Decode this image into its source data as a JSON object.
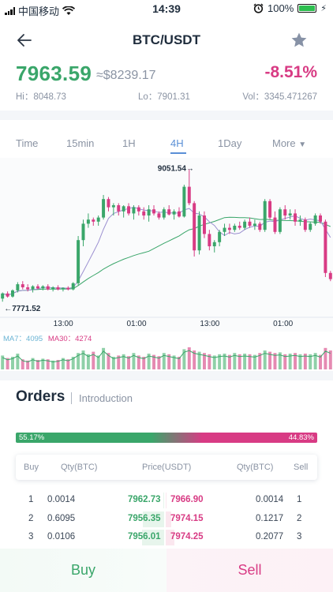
{
  "status_bar": {
    "carrier": "中国移动",
    "time": "14:39",
    "battery": "100%"
  },
  "nav": {
    "title": "BTC/USDT"
  },
  "ticker": {
    "price": "7963.59",
    "usd_price": "≈$8239.17",
    "change": "-8.51%",
    "high": "Hi：8048.73",
    "low": "Lo：7901.31",
    "volume": "Vol：3345.471267"
  },
  "tabs": [
    "Time",
    "15min",
    "1H",
    "4H",
    "1Day",
    "More"
  ],
  "active_tab": "4H",
  "chart_data": {
    "type": "line",
    "title": "",
    "annotations": {
      "max_label": "9051.54",
      "min_label": "7771.52"
    },
    "x_ticks": [
      "13:00",
      "01:00",
      "13:00",
      "01:00"
    ],
    "ma_legend": {
      "ma7": "MA7：4095",
      "ma30": "MA30：4274"
    },
    "colors": {
      "up": "#3aa66a",
      "down": "#d83b84",
      "ma7": "#9b8fd0",
      "ma30": "#3aa66a"
    },
    "candles": [
      [
        7790,
        7850,
        7760,
        7840
      ],
      [
        7840,
        7860,
        7800,
        7810
      ],
      [
        7810,
        7880,
        7800,
        7870
      ],
      [
        7870,
        7950,
        7850,
        7930
      ],
      [
        7930,
        7960,
        7880,
        7900
      ],
      [
        7900,
        7930,
        7860,
        7880
      ],
      [
        7880,
        7920,
        7850,
        7910
      ],
      [
        7910,
        7930,
        7880,
        7890
      ],
      [
        7890,
        7920,
        7870,
        7910
      ],
      [
        7910,
        7930,
        7870,
        7880
      ],
      [
        7880,
        7910,
        7860,
        7900
      ],
      [
        7900,
        7920,
        7870,
        7880
      ],
      [
        7880,
        7900,
        7860,
        7895
      ],
      [
        7895,
        7910,
        7870,
        7880
      ],
      [
        7880,
        7950,
        7870,
        7940
      ],
      [
        7940,
        8400,
        7920,
        8360
      ],
      [
        8360,
        8560,
        8300,
        8520
      ],
      [
        8520,
        8620,
        8480,
        8560
      ],
      [
        8560,
        8580,
        8500,
        8540
      ],
      [
        8540,
        8600,
        8500,
        8580
      ],
      [
        8580,
        8800,
        8560,
        8760
      ],
      [
        8760,
        8780,
        8640,
        8680
      ],
      [
        8680,
        8720,
        8600,
        8700
      ],
      [
        8700,
        8720,
        8600,
        8640
      ],
      [
        8640,
        8700,
        8580,
        8690
      ],
      [
        8690,
        8720,
        8600,
        8620
      ],
      [
        8620,
        8700,
        8560,
        8680
      ],
      [
        8680,
        8700,
        8600,
        8640
      ],
      [
        8640,
        8680,
        8560,
        8600
      ],
      [
        8600,
        8700,
        8540,
        8660
      ],
      [
        8660,
        8700,
        8600,
        8620
      ],
      [
        8620,
        8640,
        8560,
        8580
      ],
      [
        8580,
        8680,
        8560,
        8660
      ],
      [
        8660,
        8700,
        8600,
        8610
      ],
      [
        8610,
        8660,
        8560,
        8640
      ],
      [
        8640,
        8680,
        8580,
        8590
      ],
      [
        8590,
        8900,
        8580,
        8880
      ],
      [
        8880,
        9051,
        8700,
        8720
      ],
      [
        8720,
        8740,
        8200,
        8260
      ],
      [
        8260,
        8640,
        8220,
        8600
      ],
      [
        8600,
        8640,
        8380,
        8420
      ],
      [
        8420,
        8460,
        8260,
        8300
      ],
      [
        8300,
        8360,
        8240,
        8340
      ],
      [
        8340,
        8460,
        8300,
        8440
      ],
      [
        8440,
        8520,
        8400,
        8480
      ],
      [
        8480,
        8520,
        8420,
        8460
      ],
      [
        8460,
        8520,
        8440,
        8500
      ],
      [
        8500,
        8540,
        8460,
        8480
      ],
      [
        8480,
        8560,
        8460,
        8540
      ],
      [
        8540,
        8580,
        8480,
        8500
      ],
      [
        8500,
        8560,
        8460,
        8520
      ],
      [
        8520,
        8540,
        8440,
        8460
      ],
      [
        8460,
        8760,
        8440,
        8740
      ],
      [
        8740,
        8760,
        8560,
        8580
      ],
      [
        8580,
        8640,
        8420,
        8440
      ],
      [
        8440,
        8680,
        8420,
        8660
      ],
      [
        8660,
        8700,
        8560,
        8600
      ],
      [
        8600,
        8660,
        8560,
        8620
      ],
      [
        8620,
        8660,
        8500,
        8540
      ],
      [
        8540,
        8600,
        8500,
        8560
      ],
      [
        8560,
        8580,
        8440,
        8460
      ],
      [
        8460,
        8540,
        8440,
        8520
      ],
      [
        8520,
        8620,
        8500,
        8600
      ],
      [
        8600,
        8620,
        8520,
        8540
      ],
      [
        8540,
        8560,
        8000,
        8040
      ],
      [
        8040,
        8060,
        7960,
        7980
      ]
    ],
    "volumes": [
      22,
      18,
      20,
      25,
      16,
      14,
      18,
      15,
      17,
      16,
      14,
      15,
      18,
      16,
      20,
      26,
      30,
      24,
      28,
      22,
      34,
      26,
      20,
      22,
      24,
      21,
      26,
      22,
      20,
      25,
      23,
      21,
      26,
      24,
      22,
      20,
      32,
      35,
      30,
      28,
      26,
      24,
      22,
      24,
      25,
      23,
      26,
      24,
      25,
      24,
      23,
      26,
      30,
      28,
      26,
      27,
      24,
      25,
      26,
      24,
      25,
      24,
      26,
      23,
      34,
      30
    ]
  },
  "orders": {
    "title": "Orders",
    "intro": "Introduction",
    "buy_ratio": "55.17%",
    "sell_ratio": "44.83%",
    "headers": {
      "buy": "Buy",
      "qty_buy": "Qty(BTC)",
      "price": "Price(USDT)",
      "qty_sell": "Qty(BTC)",
      "sell": "Sell"
    },
    "rows": [
      {
        "idx_buy": "1",
        "qty_buy": "0.0014",
        "buy_price": "7962.73",
        "sell_price": "7966.90",
        "qty_sell": "0.0014",
        "idx_sell": "1",
        "buy_depth": 0.02,
        "sell_depth": 0.02
      },
      {
        "idx_buy": "2",
        "qty_buy": "0.6095",
        "buy_price": "7956.35",
        "sell_price": "7974.15",
        "qty_sell": "0.1217",
        "idx_sell": "2",
        "buy_depth": 0.45,
        "sell_depth": 0.12
      },
      {
        "idx_buy": "3",
        "qty_buy": "0.0106",
        "buy_price": "7956.01",
        "sell_price": "7974.25",
        "qty_sell": "0.2077",
        "idx_sell": "3",
        "buy_depth": 0.46,
        "sell_depth": 0.18
      }
    ]
  },
  "actions": {
    "buy": "Buy",
    "sell": "Sell"
  }
}
